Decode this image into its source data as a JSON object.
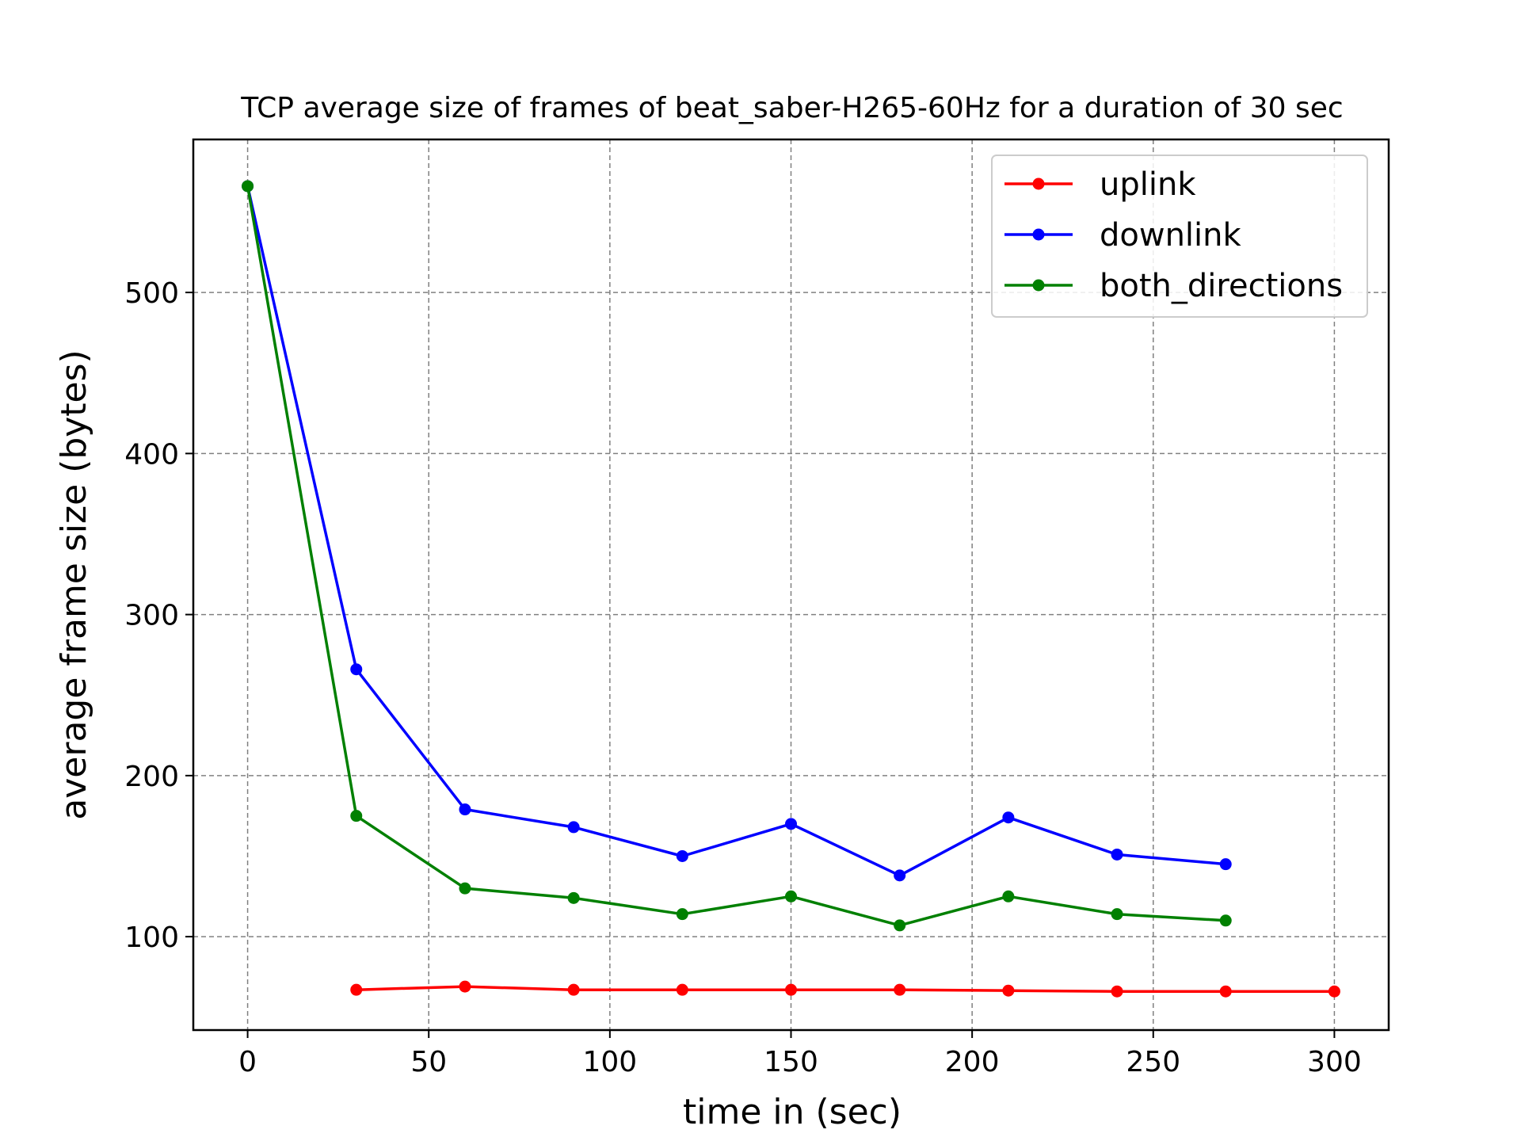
{
  "chart_data": {
    "type": "line",
    "title": "TCP average size of frames of beat_saber-H265-60Hz for a duration of 30 sec",
    "xlabel": "time in (sec)",
    "ylabel": "average frame size (bytes)",
    "xlim": [
      -15,
      315
    ],
    "ylim": [
      42,
      595
    ],
    "xticks": [
      0,
      50,
      100,
      150,
      200,
      250,
      300
    ],
    "yticks": [
      100,
      200,
      300,
      400,
      500
    ],
    "grid": true,
    "legend_position": "top-right",
    "series": [
      {
        "name": "uplink",
        "color": "#ff0000",
        "x": [
          30,
          60,
          90,
          120,
          150,
          180,
          210,
          240,
          270,
          300
        ],
        "y": [
          67,
          69,
          67,
          67,
          67,
          67,
          66.5,
          66,
          66,
          66
        ]
      },
      {
        "name": "downlink",
        "color": "#0000ff",
        "x": [
          0,
          30,
          60,
          90,
          120,
          150,
          180,
          210,
          240,
          270
        ],
        "y": [
          566,
          266,
          179,
          168,
          150,
          170,
          138,
          174,
          151,
          145
        ]
      },
      {
        "name": "both_directions",
        "color": "#008000",
        "x": [
          0,
          30,
          60,
          90,
          120,
          150,
          180,
          210,
          240,
          270
        ],
        "y": [
          566,
          175,
          130,
          124,
          114,
          125,
          107,
          125,
          114,
          110
        ]
      }
    ]
  }
}
